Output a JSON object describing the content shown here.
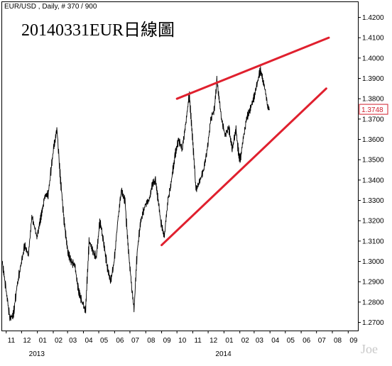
{
  "header": {
    "symbol_info": "EUR/USD , Daily, # 370 / 900",
    "title": "20140331EUR日線圖",
    "watermark": "Joe"
  },
  "colors": {
    "background": "#ffffff",
    "price_line": "#000000",
    "trendline": "#e0202e",
    "last_price_box": "#d0202e",
    "axis": "#000000"
  },
  "chart_data": {
    "type": "line",
    "series": [
      {
        "values_x": [
          "2012-10-24",
          "2012-11-01",
          "2012-11-08",
          "2012-11-15",
          "2012-11-22",
          "2012-11-30",
          "2012-12-07",
          "2012-12-14",
          "2012-12-21",
          "2012-12-31",
          "2013-01-08",
          "2013-01-15",
          "2013-01-22",
          "2013-02-01",
          "2013-02-08",
          "2013-02-15",
          "2013-02-22",
          "2013-03-01",
          "2013-03-08",
          "2013-03-15",
          "2013-03-22",
          "2013-03-29",
          "2013-04-05",
          "2013-04-12",
          "2013-04-19",
          "2013-04-26",
          "2013-05-03",
          "2013-05-10",
          "2013-05-17",
          "2013-05-24",
          "2013-05-31",
          "2013-06-07",
          "2013-06-14",
          "2013-06-21",
          "2013-06-28",
          "2013-07-05",
          "2013-07-09",
          "2013-07-15",
          "2013-07-22",
          "2013-07-31",
          "2013-08-07",
          "2013-08-14",
          "2013-08-20",
          "2013-08-30",
          "2013-09-06",
          "2013-09-13",
          "2013-09-19",
          "2013-09-27",
          "2013-10-04",
          "2013-10-11",
          "2013-10-18",
          "2013-10-25",
          "2013-11-01",
          "2013-11-07",
          "2013-11-15",
          "2013-11-22",
          "2013-11-29",
          "2013-12-06",
          "2013-12-13",
          "2013-12-18",
          "2013-12-27",
          "2014-01-03",
          "2014-01-10",
          "2014-01-17",
          "2014-01-24",
          "2014-01-31",
          "2014-02-03",
          "2014-02-07",
          "2014-02-14",
          "2014-02-21",
          "2014-02-28",
          "2014-03-07",
          "2014-03-13",
          "2014-03-19",
          "2014-03-24",
          "2014-03-27",
          "2014-03-31"
        ],
        "values_y": [
          1.3,
          1.285,
          1.272,
          1.274,
          1.288,
          1.299,
          1.308,
          1.303,
          1.322,
          1.312,
          1.322,
          1.332,
          1.333,
          1.355,
          1.365,
          1.34,
          1.32,
          1.305,
          1.3,
          1.298,
          1.286,
          1.28,
          1.276,
          1.31,
          1.305,
          1.302,
          1.32,
          1.31,
          1.298,
          1.29,
          1.3,
          1.32,
          1.335,
          1.33,
          1.305,
          1.285,
          1.277,
          1.305,
          1.32,
          1.328,
          1.33,
          1.338,
          1.34,
          1.32,
          1.312,
          1.33,
          1.338,
          1.352,
          1.36,
          1.355,
          1.368,
          1.382,
          1.358,
          1.335,
          1.34,
          1.345,
          1.355,
          1.37,
          1.375,
          1.389,
          1.37,
          1.362,
          1.366,
          1.355,
          1.365,
          1.35,
          1.352,
          1.36,
          1.37,
          1.375,
          1.38,
          1.388,
          1.394,
          1.388,
          1.382,
          1.376,
          1.3748
        ]
      }
    ],
    "y_axis": {
      "ticks": [
        "1.4200",
        "1.4100",
        "1.4000",
        "1.3900",
        "1.3800",
        "1.3700",
        "1.3600",
        "1.3500",
        "1.3400",
        "1.3300",
        "1.3200",
        "1.3100",
        "1.3000",
        "1.2900",
        "1.2800",
        "1.2700"
      ],
      "range": [
        1.266,
        1.4275
      ],
      "last_price_label": "1.3748"
    },
    "x_axis": {
      "range": [
        "2012-10-24",
        "2014-09-20"
      ],
      "month_ticks": [
        {
          "label": "11",
          "date": "2012-11-01"
        },
        {
          "label": "12",
          "date": "2012-12-01"
        },
        {
          "label": "01",
          "date": "2013-01-01"
        },
        {
          "label": "02",
          "date": "2013-02-01"
        },
        {
          "label": "03",
          "date": "2013-03-01"
        },
        {
          "label": "04",
          "date": "2013-04-01"
        },
        {
          "label": "05",
          "date": "2013-05-01"
        },
        {
          "label": "06",
          "date": "2013-06-01"
        },
        {
          "label": "07",
          "date": "2013-07-01"
        },
        {
          "label": "08",
          "date": "2013-08-01"
        },
        {
          "label": "09",
          "date": "2013-09-01"
        },
        {
          "label": "10",
          "date": "2013-10-01"
        },
        {
          "label": "11",
          "date": "2013-11-01"
        },
        {
          "label": "12",
          "date": "2013-12-01"
        },
        {
          "label": "01",
          "date": "2014-01-01"
        },
        {
          "label": "02",
          "date": "2014-02-01"
        },
        {
          "label": "03",
          "date": "2014-03-01"
        },
        {
          "label": "04",
          "date": "2014-04-01"
        },
        {
          "label": "05",
          "date": "2014-05-01"
        },
        {
          "label": "06",
          "date": "2014-06-01"
        },
        {
          "label": "07",
          "date": "2014-07-01"
        },
        {
          "label": "08",
          "date": "2014-08-01"
        },
        {
          "label": "09",
          "date": "2014-09-01"
        }
      ],
      "year_labels": [
        {
          "label": "2013",
          "date": "2013-01-01"
        },
        {
          "label": "2014",
          "date": "2014-01-01"
        }
      ]
    },
    "trendlines": [
      {
        "from": [
          "2013-09-01",
          1.308
        ],
        "to": [
          "2014-07-20",
          1.385
        ]
      },
      {
        "from": [
          "2013-10-01",
          1.38
        ],
        "to": [
          "2014-07-25",
          1.41
        ]
      }
    ],
    "grid": false,
    "legend": "none"
  }
}
